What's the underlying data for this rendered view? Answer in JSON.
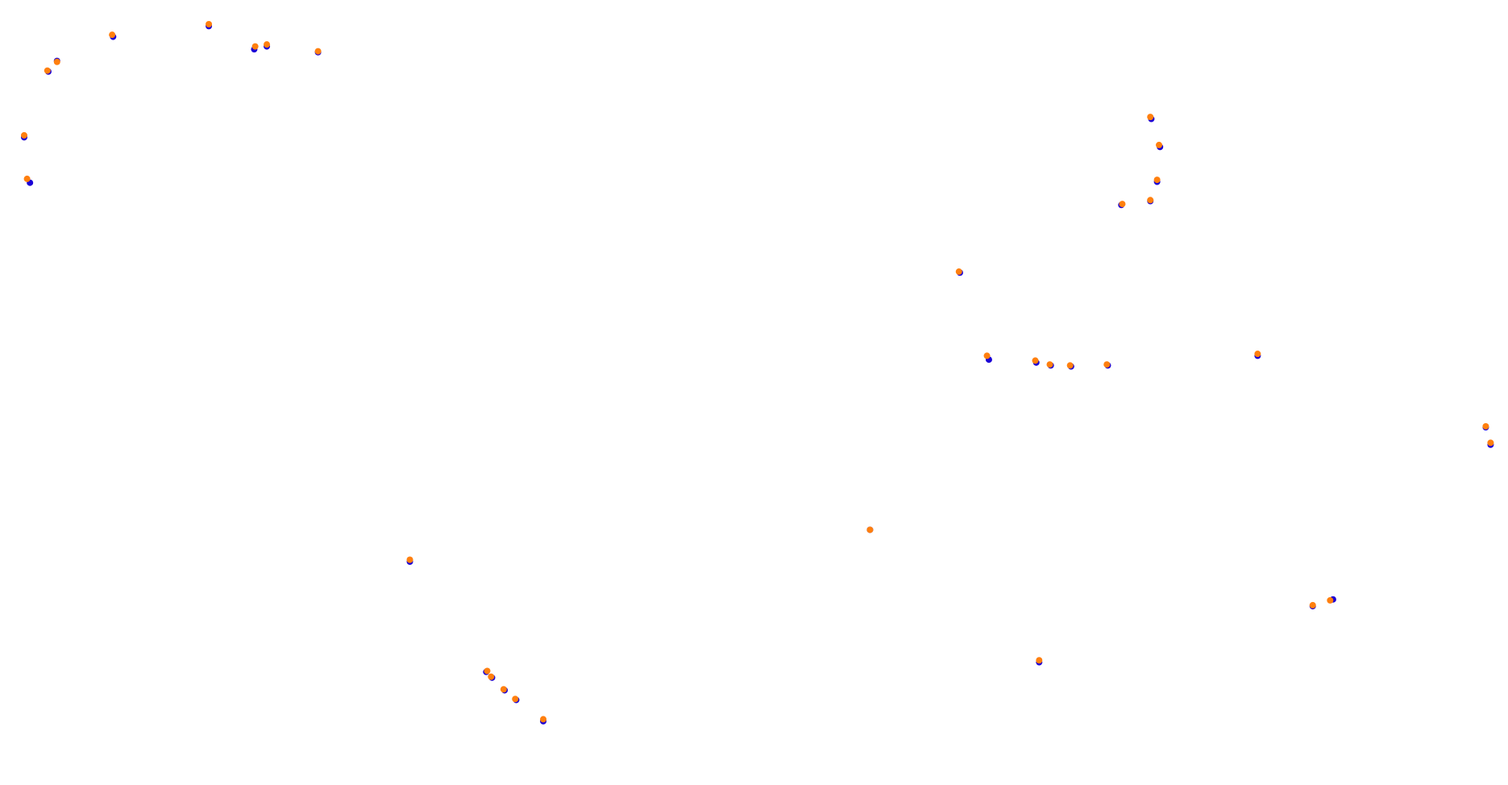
{
  "chart_data": {
    "type": "scatter",
    "xlim": [
      0,
      1560
    ],
    "ylim": [
      812,
      0
    ],
    "series": [
      {
        "color": "#1a00d6",
        "x": [
          117,
          216,
          263,
          276,
          329,
          59,
          50,
          25,
          31,
          1191,
          1200,
          1197,
          1190,
          1160,
          993,
          1023,
          1072,
          1087,
          1108,
          1146,
          1301,
          1537,
          1542,
          900,
          424,
          503,
          509,
          522,
          534,
          562,
          1075,
          1358,
          1379
        ],
        "y": [
          38,
          27,
          51,
          48,
          54,
          63,
          74,
          142,
          189,
          123,
          152,
          188,
          208,
          212,
          282,
          372,
          375,
          378,
          379,
          378,
          368,
          442,
          460,
          548,
          581,
          695,
          701,
          714,
          724,
          746,
          685,
          627,
          620
        ]
      },
      {
        "color": "#ff7f0e",
        "x": [
          116,
          216,
          264,
          276,
          329,
          59,
          49,
          25,
          28,
          1190,
          1199,
          1197,
          1190,
          1161,
          992,
          1021,
          1071,
          1086,
          1107,
          1145,
          1301,
          1537,
          1542,
          900,
          424,
          504,
          508,
          521,
          533,
          562,
          1075,
          1358,
          1376
        ],
        "y": [
          36,
          25,
          48,
          46,
          53,
          64,
          73,
          140,
          185,
          121,
          150,
          186,
          207,
          211,
          281,
          368,
          373,
          377,
          378,
          377,
          366,
          441,
          458,
          548,
          579,
          694,
          700,
          713,
          723,
          744,
          683,
          626,
          621
        ]
      }
    ]
  }
}
